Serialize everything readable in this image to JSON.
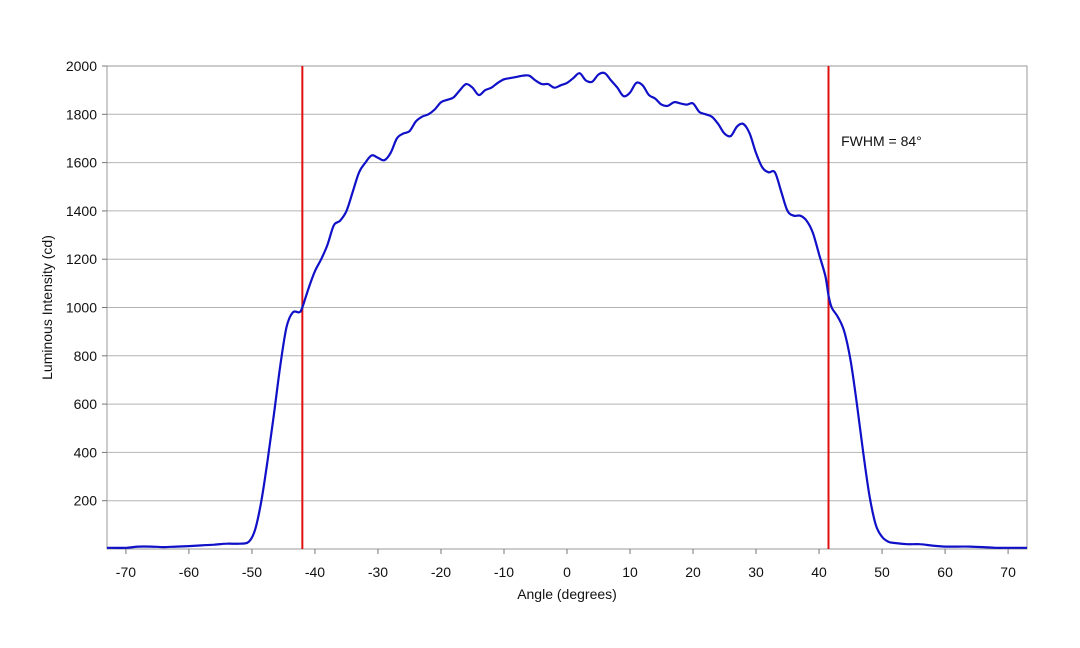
{
  "chart_data": {
    "type": "line",
    "xlabel": "Angle (degrees)",
    "ylabel": "Luminous Intensity (cd)",
    "xlim": [
      -73,
      73
    ],
    "ylim": [
      0,
      2000
    ],
    "x_ticks": [
      -70,
      -60,
      -50,
      -40,
      -30,
      -20,
      -10,
      0,
      10,
      20,
      30,
      40,
      50,
      60,
      70
    ],
    "y_ticks": [
      200,
      400,
      600,
      800,
      1000,
      1200,
      1400,
      1600,
      1800,
      2000
    ],
    "grid": "horizontal",
    "legend": "none",
    "colors": {
      "series": "#1010c8",
      "markers": "#e01010",
      "grid": "#b4b4b4"
    },
    "series": [
      {
        "x": [
          -73,
          -70,
          -68,
          -66,
          -64,
          -62,
          -60,
          -58,
          -56,
          -54,
          -52,
          -50.5,
          -49.5,
          -48.5,
          -47.5,
          -46.5,
          -45.5,
          -44.5,
          -43.5,
          -42.5,
          -42,
          -41,
          -40,
          -39,
          -38,
          -37,
          -36,
          -35,
          -34,
          -33,
          -32,
          -31,
          -30,
          -29,
          -28,
          -27,
          -26,
          -25,
          -24,
          -23,
          -22,
          -21,
          -20,
          -19,
          -18,
          -17,
          -16,
          -15,
          -14,
          -13,
          -12,
          -11,
          -10,
          -9,
          -8,
          -7,
          -6,
          -5,
          -4,
          -3,
          -2,
          -1,
          0,
          1,
          2,
          3,
          4,
          5,
          6,
          7,
          8,
          9,
          10,
          11,
          12,
          13,
          14,
          15,
          16,
          17,
          18,
          19,
          20,
          21,
          22,
          23,
          24,
          25,
          26,
          27,
          28,
          29,
          30,
          31,
          32,
          33,
          34,
          35,
          36,
          37,
          38,
          39,
          40,
          41,
          41.5,
          42,
          43,
          44,
          45,
          46,
          47,
          48,
          49,
          50,
          51,
          52,
          54,
          56,
          58,
          60,
          62,
          64,
          66,
          68,
          70,
          73
        ],
        "y": [
          5,
          5,
          10,
          10,
          8,
          10,
          12,
          15,
          18,
          22,
          22,
          30,
          80,
          200,
          370,
          560,
          760,
          920,
          980,
          980,
          1000,
          1080,
          1150,
          1200,
          1260,
          1340,
          1360,
          1400,
          1480,
          1560,
          1600,
          1630,
          1620,
          1610,
          1640,
          1700,
          1720,
          1730,
          1770,
          1790,
          1800,
          1820,
          1850,
          1860,
          1870,
          1900,
          1925,
          1910,
          1880,
          1900,
          1910,
          1930,
          1945,
          1950,
          1955,
          1960,
          1960,
          1940,
          1925,
          1925,
          1910,
          1920,
          1930,
          1950,
          1970,
          1940,
          1935,
          1965,
          1970,
          1940,
          1910,
          1875,
          1890,
          1930,
          1920,
          1880,
          1865,
          1840,
          1835,
          1850,
          1845,
          1840,
          1845,
          1810,
          1800,
          1790,
          1760,
          1720,
          1710,
          1750,
          1760,
          1720,
          1640,
          1580,
          1560,
          1560,
          1480,
          1400,
          1380,
          1380,
          1360,
          1310,
          1220,
          1130,
          1050,
          1000,
          960,
          900,
          780,
          600,
          400,
          220,
          100,
          50,
          30,
          25,
          20,
          20,
          14,
          10,
          10,
          10,
          8,
          5,
          5,
          5
        ]
      }
    ],
    "vertical_lines": [
      -42,
      41.5
    ],
    "annotations": [
      {
        "text": "FWHM = 84°",
        "x": 43.5,
        "y": 1690
      }
    ]
  }
}
